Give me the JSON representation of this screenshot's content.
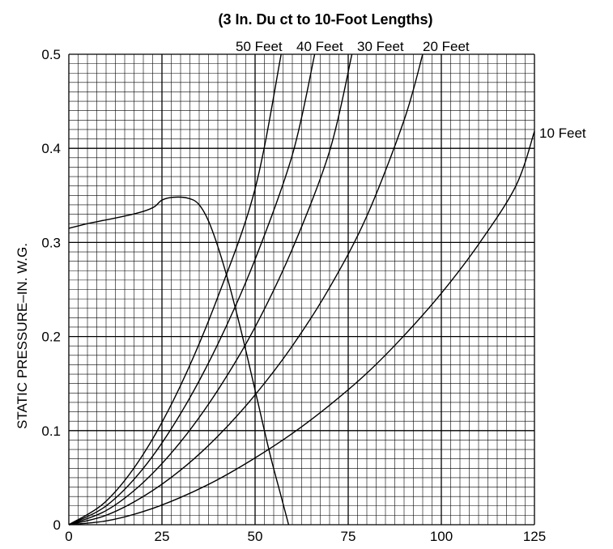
{
  "chart_data": {
    "type": "line",
    "title": "(3 In. Du ct to 10-Foot Lengths)",
    "xlabel": "",
    "ylabel": "STATIC PRESSURE–IN. W.G.",
    "xlim": [
      0,
      125
    ],
    "ylim": [
      0,
      0.5
    ],
    "xticks": [
      0,
      25,
      50,
      75,
      100,
      125
    ],
    "xtick_labels": [
      "0",
      "25",
      "50",
      "75",
      "100",
      "125"
    ],
    "yticks": [
      0,
      0.1,
      0.2,
      0.3,
      0.4,
      0.5
    ],
    "ytick_labels": [
      "0",
      "0.1",
      "0.2",
      "0.3",
      "0.4",
      "0.5"
    ],
    "x_minor_step": 2.5,
    "y_minor_step": 0.01,
    "grid": true,
    "series": [
      {
        "name": "10 Feet",
        "x": [
          0,
          10,
          20,
          30,
          40,
          50,
          60,
          70,
          80,
          90,
          100,
          110,
          120,
          125
        ],
        "y": [
          0,
          0.004,
          0.014,
          0.029,
          0.048,
          0.071,
          0.097,
          0.127,
          0.161,
          0.201,
          0.246,
          0.298,
          0.36,
          0.418
        ]
      },
      {
        "name": "20 Feet",
        "x": [
          0,
          10,
          20,
          30,
          40,
          50,
          60,
          70,
          80,
          90,
          95
        ],
        "y": [
          0,
          0.01,
          0.03,
          0.058,
          0.094,
          0.138,
          0.19,
          0.252,
          0.328,
          0.43,
          0.5
        ]
      },
      {
        "name": "30 Feet",
        "x": [
          0,
          10,
          20,
          30,
          40,
          50,
          60,
          70,
          76
        ],
        "y": [
          0,
          0.015,
          0.045,
          0.088,
          0.143,
          0.21,
          0.293,
          0.397,
          0.5
        ]
      },
      {
        "name": "40 Feet",
        "x": [
          0,
          10,
          20,
          30,
          40,
          50,
          60,
          66
        ],
        "y": [
          0,
          0.02,
          0.06,
          0.118,
          0.192,
          0.282,
          0.393,
          0.5
        ]
      },
      {
        "name": "50 Feet",
        "x": [
          0,
          10,
          20,
          30,
          40,
          50,
          57
        ],
        "y": [
          0,
          0.025,
          0.075,
          0.148,
          0.242,
          0.357,
          0.5
        ]
      },
      {
        "name": "",
        "x": [
          0,
          5,
          10,
          15,
          20,
          23,
          25,
          28,
          32,
          35,
          38,
          42,
          46,
          50,
          54,
          57,
          59
        ],
        "y": [
          0.315,
          0.32,
          0.324,
          0.328,
          0.333,
          0.338,
          0.345,
          0.348,
          0.347,
          0.34,
          0.318,
          0.27,
          0.21,
          0.143,
          0.075,
          0.03,
          0
        ]
      }
    ],
    "curve_labels": [
      "50 Feet",
      "40 Feet",
      "30 Feet",
      "20 Feet",
      "10 Feet"
    ]
  }
}
